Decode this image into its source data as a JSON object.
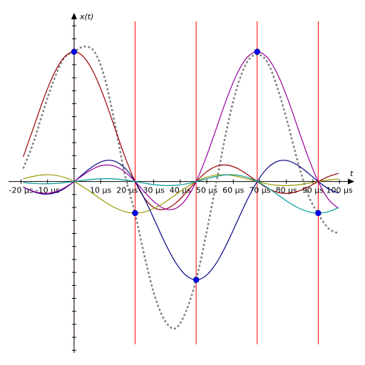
{
  "chart_data": {
    "type": "line",
    "x_label": "t",
    "y_label": "x(t)",
    "x": [
      -19.17,
      -15.33,
      -11.5,
      -7.67,
      -3.83,
      0,
      3.83,
      7.67,
      11.5,
      15.33,
      19.17,
      23,
      26.83,
      30.67,
      34.5,
      38.33,
      42.17,
      46,
      49.83,
      53.67,
      57.5,
      61.33,
      65.17,
      69,
      72.83,
      76.67,
      80.5,
      84.33,
      88.17,
      92,
      95.83,
      99.67
    ],
    "series": [
      {
        "color": "#808080",
        "dashed": true,
        "values": [
          0.1,
          0.3,
          0.55,
          0.78,
          0.95,
          1.0,
          1.04,
          1.0,
          0.8,
          0.45,
          0.05,
          -0.25,
          -0.6,
          -0.9,
          -1.08,
          -1.13,
          -1.0,
          -0.757,
          -0.4,
          0.0,
          0.4,
          0.72,
          0.92,
          0.98,
          0.92,
          0.72,
          0.45,
          0.15,
          -0.1,
          -0.25,
          -0.36,
          -0.4
        ]
      },
      {
        "color": "#990000",
        "values": [
          0.191,
          0.4135,
          0.637,
          0.827,
          0.955,
          1,
          0.955,
          0.827,
          0.637,
          0.4135,
          0.191,
          0,
          -0.1364,
          -0.2067,
          -0.2122,
          -0.1654,
          -0.0868,
          0,
          0.0735,
          0.1181,
          0.1273,
          0.1034,
          0.0562,
          0,
          -0.0503,
          -0.0827,
          -0.0909,
          -0.0752,
          -0.0415,
          0,
          0.0382,
          0.0636
        ]
      },
      {
        "color": "#999900",
        "values": [
          0.0211,
          0.0402,
          0.0516,
          0.0502,
          0.0331,
          0,
          -0.0464,
          -0.1005,
          -0.1548,
          -0.201,
          -0.2321,
          -0.243,
          -0.2321,
          -0.201,
          -0.1548,
          -0.1005,
          -0.0464,
          0,
          0.0331,
          0.0502,
          0.0516,
          0.0402,
          0.0211,
          0,
          -0.0179,
          -0.0287,
          -0.0309,
          -0.0251,
          -0.0137,
          0,
          0.0122,
          0.0201
        ]
      },
      {
        "color": "#000080",
        "values": [
          -0.0425,
          -0.0783,
          -0.0964,
          -0.0894,
          -0.0556,
          0,
          0.0657,
          0.1252,
          0.1606,
          0.1565,
          0.1033,
          0,
          -0.1446,
          -0.313,
          -0.4822,
          -0.626,
          -0.7229,
          -0.757,
          -0.7229,
          -0.626,
          -0.4822,
          -0.313,
          -0.1446,
          0,
          0.1033,
          0.1565,
          0.1606,
          0.1252,
          0.0657,
          0,
          -0.0556,
          -0.0894
        ]
      },
      {
        "color": "#990099",
        "values": [
          -0.0415,
          -0.0752,
          -0.0909,
          -0.0827,
          -0.0503,
          0,
          0.0562,
          0.1034,
          0.1273,
          0.1181,
          0.0735,
          0,
          -0.0868,
          -0.1654,
          -0.2122,
          -0.2067,
          -0.1364,
          0,
          0.191,
          0.4135,
          0.637,
          0.827,
          0.955,
          1,
          0.955,
          0.827,
          0.637,
          0.4135,
          0.191,
          0,
          -0.1364,
          -0.2067
        ]
      },
      {
        "color": "#009999",
        "values": [
          -0.008,
          -0.0144,
          -0.0172,
          -0.0155,
          -0.0093,
          0,
          0.0101,
          0.0183,
          0.0221,
          0.0201,
          0.0122,
          0,
          -0.0137,
          -0.0251,
          -0.0309,
          -0.0287,
          -0.0179,
          0,
          0.0211,
          0.0402,
          0.0516,
          0.0502,
          0.0331,
          0,
          -0.0464,
          -0.1005,
          -0.1548,
          -0.201,
          -0.2321,
          -0.243,
          -0.2321,
          -0.201
        ]
      }
    ],
    "samples": {
      "color": "#0000ff",
      "line_color": "#ff0000",
      "t": [
        0,
        23,
        46,
        69,
        92
      ],
      "values": [
        1,
        -0.243,
        -0.757,
        1,
        -0.243
      ]
    },
    "xlim": [
      -24.7,
      105.6
    ],
    "ylim": [
      -1.32,
      1.3
    ],
    "xticks": [
      {
        "value": -20,
        "label": "-20 µs"
      },
      {
        "value": -10,
        "label": "-10 µs"
      },
      {
        "value": 10,
        "label": "10 µs"
      },
      {
        "value": 20,
        "label": "20 µs"
      },
      {
        "value": 30,
        "label": "30 µs"
      },
      {
        "value": 40,
        "label": "40 µs"
      },
      {
        "value": 50,
        "label": "50 µs"
      },
      {
        "value": 60,
        "label": "60 µs"
      },
      {
        "value": 70,
        "label": "70 µs"
      },
      {
        "value": 80,
        "label": "80 µs"
      },
      {
        "value": 90,
        "label": "90 µs"
      },
      {
        "value": 100,
        "label": "100 µs"
      }
    ],
    "yticks": [
      -1.3,
      -1.2,
      -1.1,
      -1,
      -0.9,
      -0.8,
      -0.7,
      -0.6,
      -0.5,
      -0.4,
      -0.3,
      -0.2,
      -0.1,
      0.1,
      0.2,
      0.3,
      0.4,
      0.5,
      0.6,
      0.7,
      0.8,
      0.9,
      1,
      1.1,
      1.2
    ]
  }
}
